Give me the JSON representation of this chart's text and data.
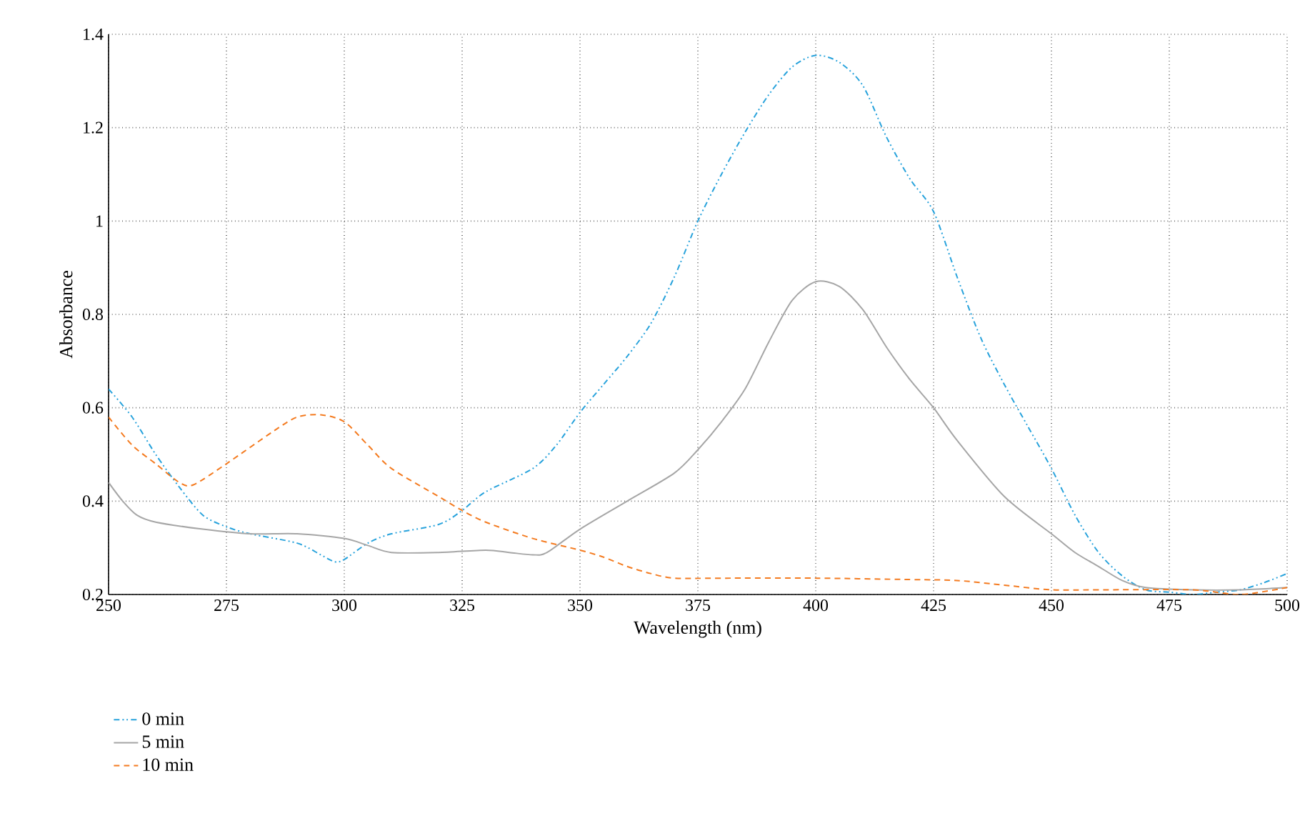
{
  "chart_data": {
    "type": "line",
    "xlabel": "Wavelength (nm)",
    "ylabel": "Absorbance",
    "xlim": [
      250,
      500
    ],
    "ylim": [
      0.2,
      1.4
    ],
    "xticks": [
      250,
      275,
      300,
      325,
      350,
      375,
      400,
      425,
      450,
      475,
      500
    ],
    "yticks": [
      0.2,
      0.4,
      0.6,
      0.8,
      1,
      1.2,
      1.4
    ],
    "grid": true,
    "legend": "bottom left",
    "marker": "none",
    "series": [
      {
        "name": "0 min",
        "color": "#29a3dc",
        "line_style": "dashdotdotted",
        "x": [
          250,
          255,
          260,
          265,
          270,
          275,
          280,
          290,
          295,
          298,
          300,
          305,
          310,
          320,
          325,
          330,
          340,
          345,
          350,
          355,
          360,
          365,
          370,
          375,
          380,
          385,
          390,
          395,
          400,
          405,
          410,
          415,
          420,
          425,
          430,
          435,
          440,
          445,
          450,
          455,
          460,
          465,
          470,
          475,
          480,
          485,
          490,
          495,
          500
        ],
        "values": [
          0.64,
          0.58,
          0.5,
          0.43,
          0.37,
          0.345,
          0.33,
          0.31,
          0.285,
          0.27,
          0.275,
          0.31,
          0.33,
          0.35,
          0.38,
          0.42,
          0.47,
          0.52,
          0.59,
          0.65,
          0.71,
          0.78,
          0.88,
          1.0,
          1.1,
          1.19,
          1.27,
          1.33,
          1.355,
          1.34,
          1.29,
          1.18,
          1.09,
          1.02,
          0.88,
          0.75,
          0.65,
          0.56,
          0.47,
          0.37,
          0.29,
          0.24,
          0.21,
          0.205,
          0.2,
          0.205,
          0.21,
          0.225,
          0.245
        ]
      },
      {
        "name": "5 min",
        "color": "#a6a6a6",
        "line_style": "solid",
        "x": [
          250,
          253,
          256,
          260,
          270,
          280,
          290,
          300,
          305,
          310,
          320,
          330,
          335,
          340,
          343,
          350,
          360,
          370,
          375,
          380,
          385,
          390,
          395,
          400,
          405,
          410,
          415,
          420,
          425,
          430,
          440,
          450,
          455,
          460,
          465,
          470,
          480,
          490,
          500
        ],
        "values": [
          0.44,
          0.4,
          0.37,
          0.355,
          0.34,
          0.33,
          0.33,
          0.32,
          0.305,
          0.29,
          0.29,
          0.295,
          0.29,
          0.285,
          0.29,
          0.34,
          0.4,
          0.46,
          0.51,
          0.57,
          0.64,
          0.74,
          0.83,
          0.87,
          0.86,
          0.81,
          0.73,
          0.66,
          0.6,
          0.53,
          0.41,
          0.33,
          0.29,
          0.26,
          0.23,
          0.215,
          0.21,
          0.21,
          0.215
        ]
      },
      {
        "name": "10 min",
        "color": "#f47b20",
        "line_style": "dashed",
        "x": [
          250,
          255,
          260,
          265,
          268,
          275,
          285,
          290,
          295,
          300,
          305,
          310,
          320,
          325,
          330,
          340,
          350,
          355,
          360,
          365,
          370,
          380,
          400,
          420,
          430,
          440,
          450,
          460,
          480,
          490,
          500
        ],
        "values": [
          0.58,
          0.52,
          0.48,
          0.44,
          0.435,
          0.48,
          0.55,
          0.58,
          0.585,
          0.57,
          0.52,
          0.47,
          0.41,
          0.38,
          0.355,
          0.32,
          0.295,
          0.28,
          0.26,
          0.245,
          0.235,
          0.235,
          0.235,
          0.232,
          0.23,
          0.22,
          0.21,
          0.21,
          0.21,
          0.2,
          0.215
        ]
      }
    ]
  }
}
